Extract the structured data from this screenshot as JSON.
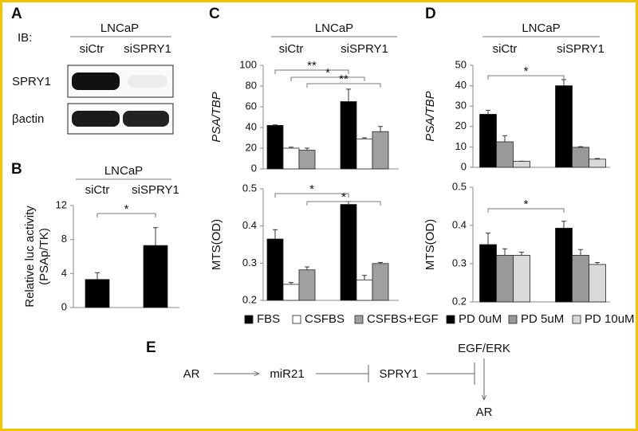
{
  "panel_labels": [
    "A",
    "B",
    "C",
    "D",
    "E"
  ],
  "blot": {
    "ib_label": "IB:",
    "group_label": "LNCaP",
    "lanes": [
      "siCtr",
      "siSPRY1"
    ],
    "rows": [
      "SPRY1",
      "βactin"
    ]
  },
  "chart_data": [
    {
      "type": "bar",
      "group_label": "LNCaP",
      "categories": [
        "siCtr",
        "siSPRY1"
      ],
      "ylabel": [
        "Relative luc activity",
        "(PSAp/TK)"
      ],
      "ylim": [
        0,
        12
      ],
      "yticks": [
        0,
        4,
        8,
        12
      ],
      "series": [
        {
          "color": "#000000",
          "values": [
            3.3,
            7.3
          ],
          "errors": [
            0.8,
            2.1
          ]
        }
      ],
      "annotations": [
        {
          "text": "*"
        }
      ]
    },
    {
      "type": "bar",
      "group_label": "LNCaP",
      "categories": [
        "siCtr",
        "siSPRY1"
      ],
      "ylabel": [
        "PSA/TBP"
      ],
      "ylim": [
        0,
        100
      ],
      "yticks": [
        0,
        20,
        40,
        60,
        80,
        100
      ],
      "series": [
        {
          "color": "#000000",
          "values": [
            42,
            65
          ],
          "errors": [
            0.5,
            12
          ]
        },
        {
          "color": "#ffffff",
          "values": [
            20,
            29
          ],
          "errors": [
            1,
            1
          ]
        },
        {
          "color": "#a0a0a0",
          "values": [
            18,
            36
          ],
          "errors": [
            2,
            5
          ]
        }
      ],
      "annotations": [
        {
          "text": "**"
        },
        {
          "text": "*"
        },
        {
          "text": "**"
        }
      ]
    },
    {
      "type": "bar",
      "categories": [
        null,
        null
      ],
      "ylabel": [
        "MTS(OD)"
      ],
      "ylim": [
        0.2,
        0.5
      ],
      "yticks": [
        0.2,
        0.3,
        0.4,
        0.5
      ],
      "series": [
        {
          "name": "FBS",
          "color": "#000000",
          "values": [
            0.365,
            0.458
          ],
          "errors": [
            0.025,
            0.008
          ]
        },
        {
          "name": "CSFBS",
          "color": "#ffffff",
          "values": [
            0.243,
            0.255
          ],
          "errors": [
            0.005,
            0.012
          ]
        },
        {
          "name": "CSFBS+EGF",
          "color": "#a0a0a0",
          "values": [
            0.282,
            0.299
          ],
          "errors": [
            0.008,
            0.003
          ]
        }
      ],
      "annotations": [
        {
          "text": "*"
        },
        {
          "text": "*"
        }
      ]
    },
    {
      "type": "bar",
      "group_label": "LNCaP",
      "categories": [
        "siCtr",
        "siSPRY1"
      ],
      "ylabel": [
        "PSA/TBP"
      ],
      "ylim": [
        0,
        50
      ],
      "yticks": [
        0,
        10,
        20,
        30,
        40,
        50
      ],
      "series": [
        {
          "color": "#000000",
          "values": [
            26,
            40
          ],
          "errors": [
            2,
            3
          ]
        },
        {
          "color": "#999999",
          "values": [
            12.5,
            9.8
          ],
          "errors": [
            3,
            0.3
          ]
        },
        {
          "color": "#d9d9d9",
          "values": [
            3,
            4
          ],
          "errors": [
            0,
            0.3
          ]
        }
      ],
      "annotations": [
        {
          "text": "*"
        }
      ]
    },
    {
      "type": "bar",
      "categories": [
        null,
        null
      ],
      "ylabel": [
        "MTS(OD)"
      ],
      "ylim": [
        0.2,
        0.5
      ],
      "yticks": [
        0.2,
        0.3,
        0.4,
        0.5
      ],
      "series": [
        {
          "name": "PD 0uM",
          "color": "#000000",
          "values": [
            0.35,
            0.393
          ],
          "errors": [
            0.03,
            0.018
          ]
        },
        {
          "name": "PD 5uM",
          "color": "#999999",
          "values": [
            0.322,
            0.322
          ],
          "errors": [
            0.017,
            0.015
          ]
        },
        {
          "name": "PD 10uM",
          "color": "#d9d9d9",
          "values": [
            0.322,
            0.298
          ],
          "errors": [
            0.008,
            0.005
          ]
        }
      ],
      "annotations": [
        {
          "text": "*"
        }
      ]
    }
  ],
  "diagram": {
    "nodes": [
      "AR",
      "miR21",
      "SPRY1",
      "EGF/ERK",
      "AR"
    ]
  }
}
